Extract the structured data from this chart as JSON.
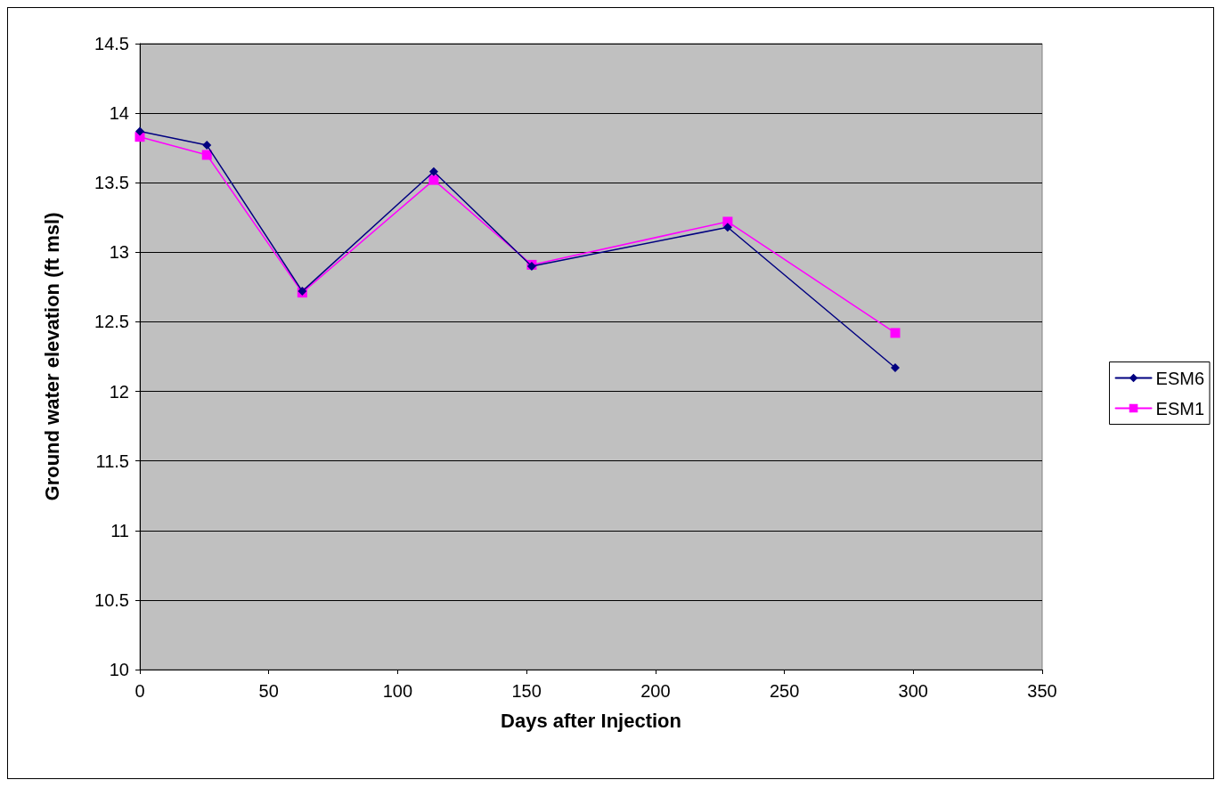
{
  "chart_data": {
    "type": "line",
    "xlabel": "Days after Injection",
    "ylabel": "Ground water elevation (ft msl)",
    "x": [
      0,
      26,
      63,
      114,
      152,
      228,
      293
    ],
    "series": [
      {
        "name": "ESM6",
        "color": "#000080",
        "marker": "diamond",
        "values": [
          13.87,
          13.77,
          12.72,
          13.58,
          12.9,
          13.18,
          12.17
        ]
      },
      {
        "name": "ESM1",
        "color": "#ff00ff",
        "marker": "square",
        "values": [
          13.83,
          13.7,
          12.71,
          13.52,
          12.91,
          13.22,
          12.42
        ]
      }
    ],
    "xlim": [
      0,
      350
    ],
    "xticks": [
      0,
      50,
      100,
      150,
      200,
      250,
      300,
      350
    ],
    "ylim": [
      10,
      14.5
    ],
    "yticks": [
      10,
      10.5,
      11,
      11.5,
      12,
      12.5,
      13,
      13.5,
      14,
      14.5
    ],
    "grid": "y",
    "legend": "right",
    "line_style": "solid"
  }
}
